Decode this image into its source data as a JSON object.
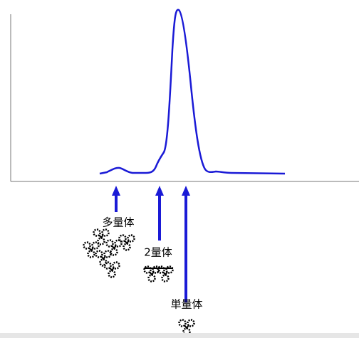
{
  "labels": {
    "multimer": "多量体",
    "dimer": "2量体",
    "monomer": "単量体"
  }
}
